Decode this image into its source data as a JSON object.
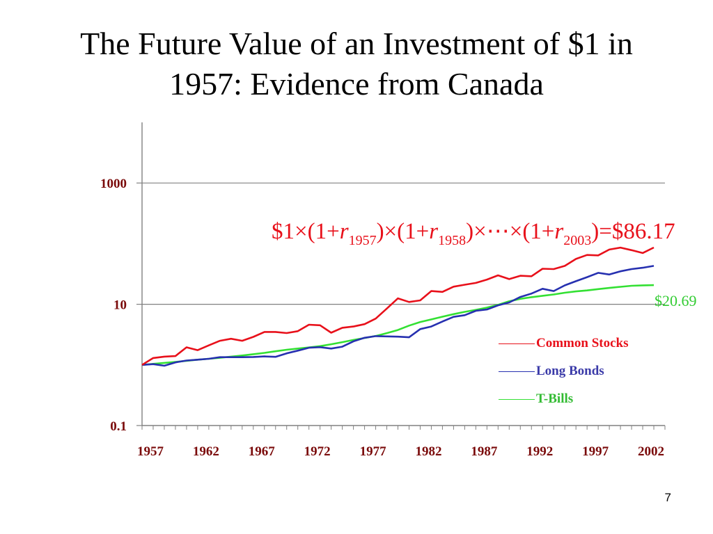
{
  "slide": {
    "title_line1": "The Future Value of an Investment of $1 in",
    "title_line2": "1957: Evidence from Canada",
    "page_number": "7"
  },
  "formula": {
    "prefix": "$1×(1+",
    "r": "r",
    "sub1": "1957",
    "mid1": ")×(1+",
    "sub2": "1958",
    "mid2": ")×⋯×(1+",
    "sub3": "2003",
    "suffix": ")=$86.17"
  },
  "colors": {
    "common_stocks": "#e8101a",
    "long_bonds": "#2630b0",
    "t_bills": "#33e033",
    "axis_tick_text": "#7a0a0a",
    "gridline": "#808080"
  },
  "chart_data": {
    "type": "line",
    "y_scale": "log",
    "ylim": [
      0.1,
      10000
    ],
    "xlim": [
      1957,
      2004
    ],
    "y_ticks": [
      0.1,
      10,
      1000
    ],
    "y_tick_labels": [
      "0.1",
      "10",
      "1000"
    ],
    "x_ticks": [
      1957,
      1962,
      1967,
      1972,
      1977,
      1982,
      1987,
      1992,
      1997,
      2002
    ],
    "x_tick_labels": [
      "1957",
      "1962",
      "1967",
      "1972",
      "1977",
      "1982",
      "1987",
      "1992",
      "1997",
      "2002"
    ],
    "grid": "horizontal at labeled y ticks",
    "legend_position": "lower-right",
    "annotation_t_bills_end": "$20.69",
    "x": [
      1957,
      1958,
      1959,
      1960,
      1961,
      1962,
      1963,
      1964,
      1965,
      1966,
      1967,
      1968,
      1969,
      1970,
      1971,
      1972,
      1973,
      1974,
      1975,
      1976,
      1977,
      1978,
      1979,
      1980,
      1981,
      1982,
      1983,
      1984,
      1985,
      1986,
      1987,
      1988,
      1989,
      1990,
      1991,
      1992,
      1993,
      1994,
      1995,
      1996,
      1997,
      1998,
      1999,
      2000,
      2001,
      2002,
      2003
    ],
    "series": [
      {
        "name": "Common Stocks",
        "values": [
          1.0,
          1.3,
          1.37,
          1.4,
          1.95,
          1.75,
          2.1,
          2.5,
          2.7,
          2.5,
          2.9,
          3.5,
          3.5,
          3.35,
          3.6,
          4.6,
          4.5,
          3.4,
          4.1,
          4.3,
          4.7,
          5.8,
          8.5,
          12.5,
          10.9,
          11.6,
          16.5,
          16.0,
          19.5,
          21.0,
          22.5,
          25.5,
          30.0,
          26.0,
          29.5,
          29.0,
          38.5,
          38.0,
          43.0,
          56.0,
          65.0,
          64.0,
          80.0,
          86.0,
          78.0,
          70.0,
          86.17
        ]
      },
      {
        "name": "Long Bonds",
        "values": [
          1.0,
          1.03,
          0.97,
          1.1,
          1.18,
          1.22,
          1.26,
          1.34,
          1.34,
          1.34,
          1.35,
          1.38,
          1.36,
          1.55,
          1.72,
          1.92,
          1.96,
          1.86,
          2.0,
          2.45,
          2.8,
          2.98,
          2.95,
          2.92,
          2.85,
          3.9,
          4.3,
          5.2,
          6.2,
          6.6,
          7.8,
          8.2,
          9.6,
          10.7,
          13.2,
          15.0,
          18.0,
          16.5,
          20.5,
          24.0,
          28.0,
          33.0,
          31.0,
          35.0,
          38.0,
          40.0,
          43.0
        ]
      },
      {
        "name": "T-Bills",
        "values": [
          1.0,
          1.04,
          1.08,
          1.12,
          1.17,
          1.22,
          1.26,
          1.31,
          1.37,
          1.43,
          1.5,
          1.58,
          1.68,
          1.78,
          1.86,
          1.94,
          2.04,
          2.19,
          2.37,
          2.58,
          2.78,
          3.0,
          3.34,
          3.76,
          4.45,
          5.1,
          5.62,
          6.24,
          6.88,
          7.5,
          8.1,
          8.8,
          9.8,
          11.2,
          12.3,
          13.1,
          13.8,
          14.5,
          15.5,
          16.3,
          16.9,
          17.8,
          18.6,
          19.4,
          20.2,
          20.5,
          20.69
        ]
      }
    ]
  }
}
